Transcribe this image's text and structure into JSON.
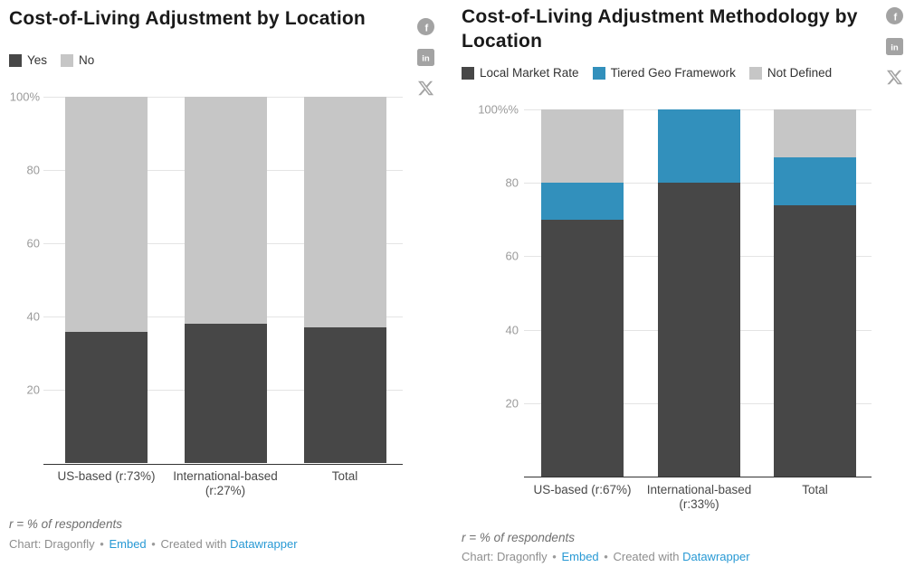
{
  "chart_data": [
    {
      "type": "bar",
      "stacked": true,
      "title": "Cost-of-Living Adjustment by Location",
      "categories": [
        "US-based (r:73%)",
        "International-based (r:27%)",
        "Total"
      ],
      "series": [
        {
          "name": "Yes",
          "color": "#474747",
          "values": [
            36,
            38,
            37
          ]
        },
        {
          "name": "No",
          "color": "#c6c6c6",
          "values": [
            64,
            62,
            63
          ]
        }
      ],
      "ylim": [
        0,
        100
      ],
      "yticks": [
        {
          "value": 100,
          "label": "100%"
        },
        {
          "value": 80,
          "label": "80"
        },
        {
          "value": 60,
          "label": "60"
        },
        {
          "value": 40,
          "label": "40"
        },
        {
          "value": 20,
          "label": "20"
        }
      ],
      "grid": true,
      "legend_position": "top-left",
      "note": "r = % of respondents",
      "attribution": {
        "source": "Chart: Dragonfly",
        "separator": "•",
        "embed_link": "Embed",
        "created_text": "Created with",
        "tool_link": "Datawrapper"
      }
    },
    {
      "type": "bar",
      "stacked": true,
      "title": "Cost-of-Living Adjustment Methodology by Location",
      "categories": [
        "US-based (r:67%)",
        "International-based (r:33%)",
        "Total"
      ],
      "series": [
        {
          "name": "Local Market Rate",
          "color": "#474747",
          "values": [
            70,
            80,
            74
          ]
        },
        {
          "name": "Tiered Geo Framework",
          "color": "#3290bc",
          "values": [
            10,
            20,
            13
          ]
        },
        {
          "name": "Not Defined",
          "color": "#c6c6c6",
          "values": [
            20,
            0,
            13
          ]
        }
      ],
      "ylim": [
        0,
        100
      ],
      "yticks": [
        {
          "value": 100,
          "label": "100%%"
        },
        {
          "value": 80,
          "label": "80"
        },
        {
          "value": 60,
          "label": "60"
        },
        {
          "value": 40,
          "label": "40"
        },
        {
          "value": 20,
          "label": "20"
        }
      ],
      "grid": true,
      "legend_position": "top-left",
      "note": "r = % of respondents",
      "attribution": {
        "source": "Chart: Dragonfly",
        "separator": "•",
        "embed_link": "Embed",
        "created_text": "Created with",
        "tool_link": "Datawrapper"
      }
    }
  ],
  "social": {
    "icons": [
      "facebook-icon",
      "linkedin-icon",
      "x-icon"
    ],
    "facebook_glyph": "f",
    "linkedin_glyph": "in"
  },
  "colors": {
    "bar_dark": "#474747",
    "bar_blue": "#3290bc",
    "bar_light_gray": "#c6c6c6",
    "link_blue": "#2899d4",
    "icon_gray": "#a3a3a3",
    "axis_tick": "#9b9b9b",
    "category_label": "#494949",
    "gridline": "#e4e4e4",
    "baseline": "#333333"
  }
}
